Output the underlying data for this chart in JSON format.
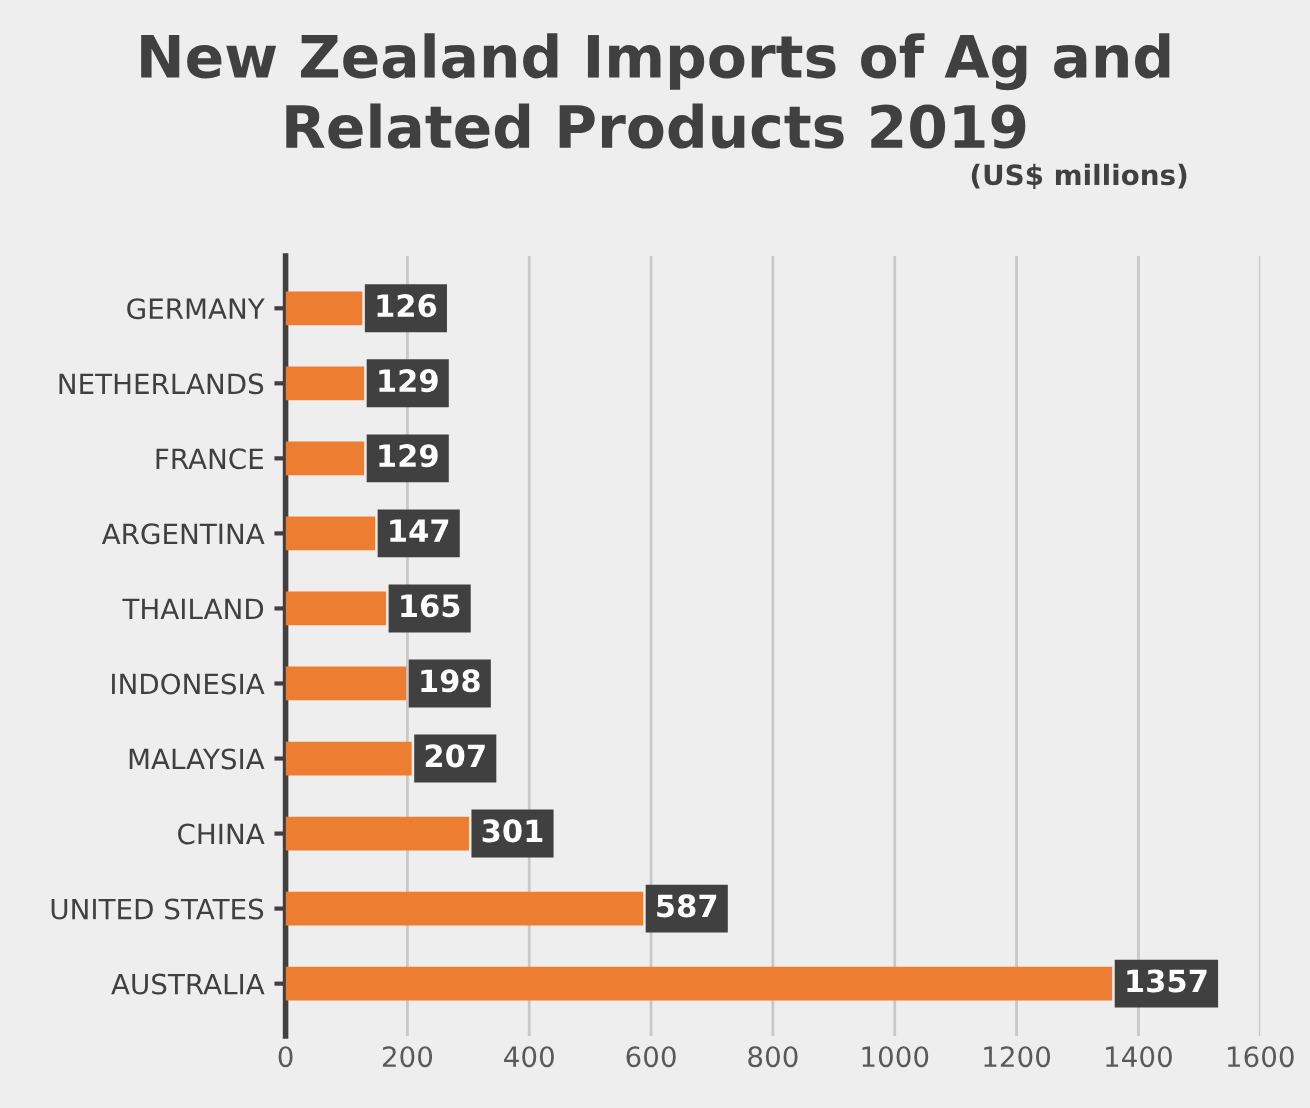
{
  "chart_data": {
    "type": "bar",
    "orientation": "horizontal",
    "title": "New Zealand Imports of Ag and\nRelated Products 2019",
    "subtitle": "(US$ millions)",
    "categories": [
      "GERMANY",
      "NETHERLANDS",
      "FRANCE",
      "ARGENTINA",
      "THAILAND",
      "INDONESIA",
      "MALAYSIA",
      "CHINA",
      "UNITED STATES",
      "AUSTRALIA"
    ],
    "values": [
      126,
      129,
      129,
      147,
      165,
      198,
      207,
      301,
      587,
      1357
    ],
    "color": "#ed7d31",
    "xlim": [
      0,
      1600
    ],
    "xticks": [
      0,
      200,
      400,
      600,
      800,
      1000,
      1200,
      1400,
      1600
    ],
    "grid": "x",
    "data_labels": true,
    "legend": false
  }
}
